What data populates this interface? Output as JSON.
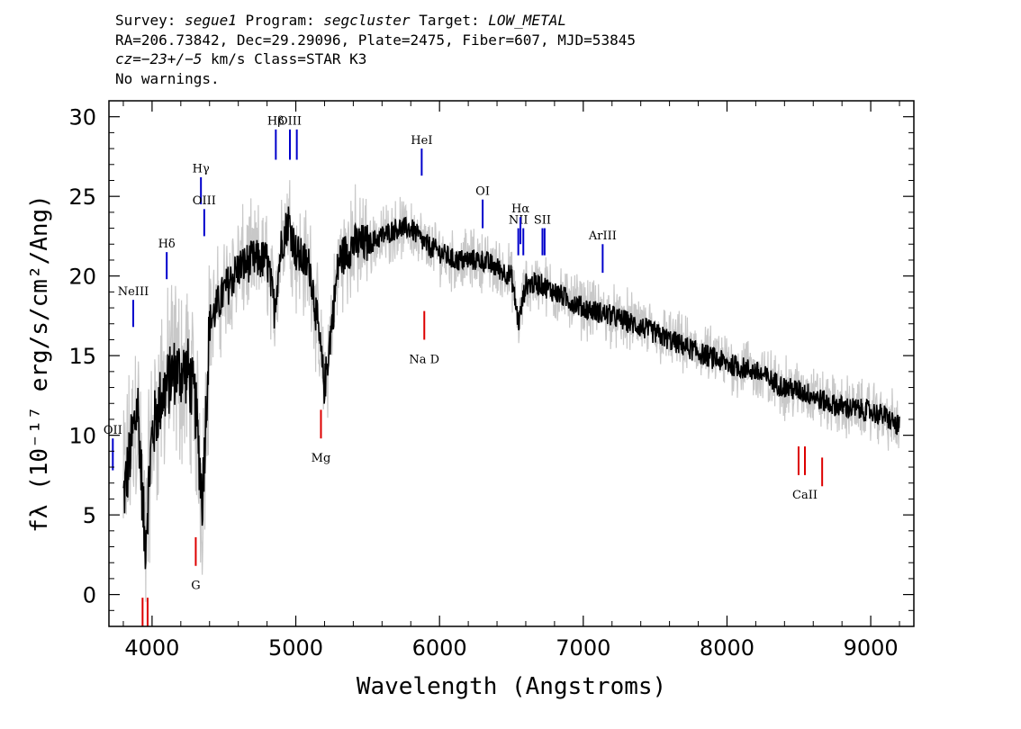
{
  "header": {
    "survey_label": "Survey:",
    "survey": "segue1",
    "program_label": "Program:",
    "program": "segcluster",
    "target_label": "Target:",
    "target": "LOW_METAL",
    "line2": "RA=206.73842, Dec=29.29096, Plate=2475, Fiber=607, MJD=53845",
    "cz_label": "cz=",
    "cz_value": "−23+/−5",
    "cz_rest": " km/s Class=STAR K3",
    "line4": "No warnings."
  },
  "chart_data": {
    "type": "line",
    "xlabel": "Wavelength (Angstroms)",
    "ylabel": "fλ (10⁻¹⁷ erg/s/cm²/Ang)",
    "xlim": [
      3700,
      9300
    ],
    "ylim": [
      -2,
      31
    ],
    "x_ticks": [
      4000,
      5000,
      6000,
      7000,
      8000,
      9000
    ],
    "y_ticks": [
      0,
      5,
      10,
      15,
      20,
      25,
      30
    ],
    "grid": false,
    "colors": {
      "spectrum": "#000000",
      "error_band": "#c8c8c8",
      "emission": "#0000cc",
      "absorption": "#dd0000"
    },
    "series": [
      {
        "name": "",
        "x": [
          3800,
          3850,
          3900,
          3950,
          4000,
          4050,
          4100,
          4150,
          4200,
          4250,
          4300,
          4350,
          4400,
          4500,
          4600,
          4700,
          4800,
          4850,
          4900,
          4950,
          5000,
          5100,
          5150,
          5200,
          5300,
          5400,
          5500,
          5600,
          5700,
          5800,
          5900,
          6000,
          6100,
          6200,
          6300,
          6400,
          6500,
          6550,
          6600,
          6700,
          6800,
          6900,
          7000,
          7200,
          7400,
          7600,
          7800,
          8000,
          8200,
          8400,
          8500,
          8600,
          8700,
          8800,
          9000,
          9100,
          9200
        ],
        "y": [
          6,
          9,
          12,
          3,
          10,
          12,
          13,
          14,
          14,
          14,
          12,
          6,
          17,
          19,
          20.5,
          21,
          21,
          18,
          22,
          23.5,
          21.5,
          20.5,
          17,
          13,
          21,
          22,
          22,
          22.5,
          23,
          23,
          22,
          21.5,
          21,
          21,
          21,
          20.5,
          20,
          17,
          19.5,
          19.5,
          19,
          18.5,
          18,
          17.5,
          16.8,
          16,
          15.2,
          14.5,
          14,
          13,
          12.8,
          12.5,
          12,
          11.8,
          11.5,
          11.2,
          10.5
        ]
      }
    ],
    "emission_lines": [
      {
        "label": "OII",
        "x": 3727,
        "y_bottom": 7.8,
        "y_top": 9.8,
        "label_y": 10.1
      },
      {
        "label": "NeIII",
        "x": 3869,
        "y_bottom": 16.8,
        "y_top": 18.5,
        "label_y": 18.8
      },
      {
        "label": "Hδ",
        "x": 4102,
        "y_bottom": 19.8,
        "y_top": 21.5,
        "label_y": 21.8
      },
      {
        "label": "Hγ",
        "x": 4340,
        "y_bottom": 24.5,
        "y_top": 26.2,
        "label_y": 26.5
      },
      {
        "label": "OIII",
        "x": 4363,
        "y_bottom": 22.5,
        "y_top": 24.2,
        "label_y": 24.5
      },
      {
        "label": "Hβ",
        "x": 4861,
        "y_bottom": 27.3,
        "y_top": 29.2,
        "label_y": 29.5
      },
      {
        "label": "OIII",
        "x": 4959,
        "y_bottom": 27.3,
        "y_top": 29.2,
        "label_y": 29.5
      },
      {
        "label": "",
        "x": 5007,
        "y_bottom": 27.3,
        "y_top": 29.2,
        "label_y": 0
      },
      {
        "label": "HeI",
        "x": 5876,
        "y_bottom": 26.3,
        "y_top": 28.0,
        "label_y": 28.3
      },
      {
        "label": "OI",
        "x": 6300,
        "y_bottom": 23.0,
        "y_top": 24.8,
        "label_y": 25.1
      },
      {
        "label": "NII",
        "x": 6548,
        "y_bottom": 21.3,
        "y_top": 23.0,
        "label_y": 23.3
      },
      {
        "label": "Hα",
        "x": 6563,
        "y_bottom": 22.0,
        "y_top": 23.7,
        "label_y": 24.0
      },
      {
        "label": "",
        "x": 6583,
        "y_bottom": 21.3,
        "y_top": 23.0,
        "label_y": 0
      },
      {
        "label": "SII",
        "x": 6716,
        "y_bottom": 21.3,
        "y_top": 23.0,
        "label_y": 23.3
      },
      {
        "label": "",
        "x": 6731,
        "y_bottom": 21.3,
        "y_top": 23.0,
        "label_y": 0
      },
      {
        "label": "ArIII",
        "x": 7135,
        "y_bottom": 20.2,
        "y_top": 22.0,
        "label_y": 22.3
      }
    ],
    "absorption_lines": [
      {
        "label": "",
        "x": 3934,
        "y_bottom": -2.0,
        "y_top": -0.2,
        "label_y": 0
      },
      {
        "label": "",
        "x": 3969,
        "y_bottom": -2.0,
        "y_top": -0.2,
        "label_y": 0
      },
      {
        "label": "G",
        "x": 4304,
        "y_bottom": 1.8,
        "y_top": 3.6,
        "label_y": 0.9
      },
      {
        "label": "Mg",
        "x": 5175,
        "y_bottom": 9.8,
        "y_top": 11.6,
        "label_y": 8.9
      },
      {
        "label": "Na D",
        "x": 5894,
        "y_bottom": 16.0,
        "y_top": 17.8,
        "label_y": 15.1
      },
      {
        "label": "",
        "x": 8498,
        "y_bottom": 7.5,
        "y_top": 9.3,
        "label_y": 0
      },
      {
        "label": "CaII",
        "x": 8542,
        "y_bottom": 7.5,
        "y_top": 9.3,
        "label_y": 6.6
      },
      {
        "label": "",
        "x": 8662,
        "y_bottom": 6.8,
        "y_top": 8.6,
        "label_y": 0
      }
    ]
  }
}
